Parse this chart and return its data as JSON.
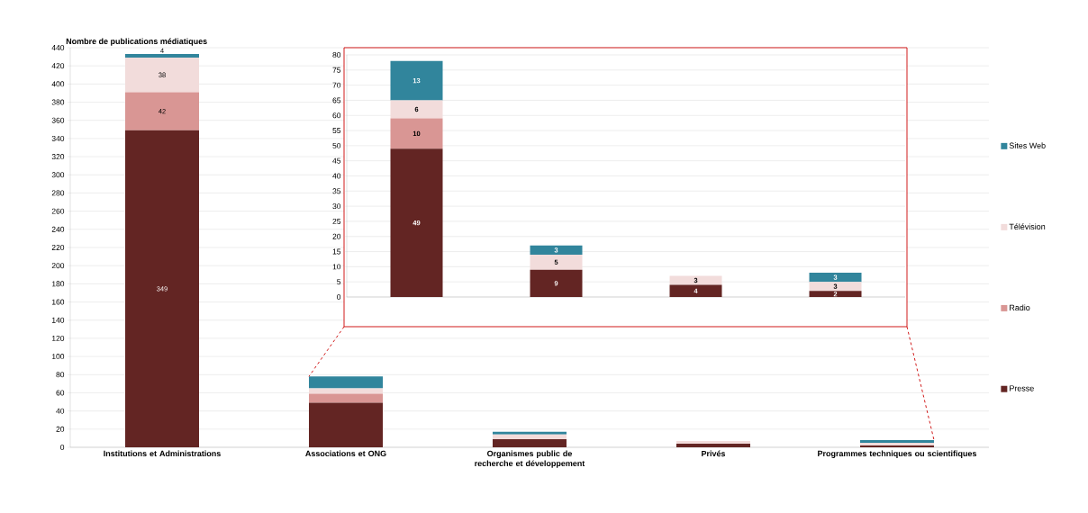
{
  "chart_data": [
    {
      "type": "bar",
      "stacked": true,
      "ylabel": "Nombre de publications médiatiques",
      "categories": [
        "Institutions et Administrations",
        "Associations et ONG",
        "Organismes public de recherche et développement",
        "Privés",
        "Programmes techniques ou scientifiques"
      ],
      "ylim": [
        0,
        440
      ],
      "yticks": [
        0,
        20,
        40,
        60,
        80,
        100,
        120,
        140,
        160,
        180,
        200,
        220,
        240,
        260,
        280,
        300,
        320,
        340,
        360,
        380,
        400,
        420,
        440
      ],
      "grid": "y",
      "legend": "right",
      "series": [
        {
          "name": "Presse",
          "color": "#632523",
          "values": [
            349,
            49,
            9,
            4,
            2
          ],
          "value_labels": [
            "349",
            null,
            null,
            null,
            null
          ]
        },
        {
          "name": "Radio",
          "color": "#d99694",
          "values": [
            42,
            10,
            0,
            0,
            0
          ],
          "value_labels": [
            "42",
            null,
            null,
            null,
            null
          ]
        },
        {
          "name": "Télévision",
          "color": "#f2dcdb",
          "values": [
            38,
            6,
            5,
            3,
            3
          ],
          "value_labels": [
            "38",
            null,
            null,
            null,
            null
          ]
        },
        {
          "name": "Sites Web",
          "color": "#31859c",
          "values": [
            4,
            13,
            3,
            0,
            3
          ],
          "value_labels": [
            "4",
            null,
            null,
            null,
            null
          ]
        }
      ]
    },
    {
      "type": "bar",
      "stacked": true,
      "categories": [
        null,
        null,
        null,
        null
      ],
      "ylim": [
        0,
        80
      ],
      "yticks": [
        0,
        5,
        10,
        15,
        20,
        25,
        30,
        35,
        40,
        45,
        50,
        55,
        60,
        65,
        70,
        75,
        80
      ],
      "grid": "y",
      "tick_labels": "y",
      "series": [
        {
          "color": "#632523",
          "values": [
            49,
            9,
            4,
            2
          ],
          "value_labels": [
            "49",
            "9",
            "4",
            "2"
          ]
        },
        {
          "color": "#d99694",
          "values": [
            10,
            0,
            0,
            0
          ],
          "value_labels": [
            "10",
            null,
            null,
            null
          ]
        },
        {
          "color": "#f2dcdb",
          "values": [
            6,
            5,
            3,
            3
          ],
          "value_labels": [
            "6",
            "5",
            "3",
            "3"
          ]
        },
        {
          "color": "#31859c",
          "values": [
            13,
            3,
            0,
            3
          ],
          "value_labels": [
            "13",
            "3",
            null,
            "3"
          ]
        }
      ]
    }
  ]
}
